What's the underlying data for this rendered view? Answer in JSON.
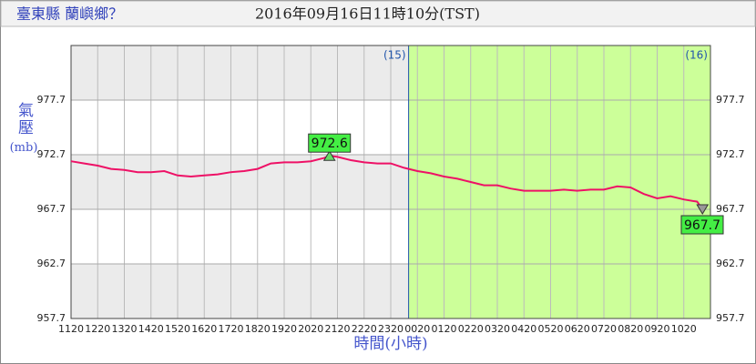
{
  "chart_data": {
    "type": "line",
    "station": "臺東縣 蘭嶼鄉？",
    "datetime": "2016年09月16日11時10分(TST)",
    "y_label": "氣壓",
    "y_unit": "(mb)",
    "x_label": "時間(小時)",
    "xlim": [
      0,
      24
    ],
    "ylim": [
      957.7,
      982.7
    ],
    "yticks": [
      957.7,
      962.7,
      967.7,
      972.7,
      977.7
    ],
    "xticks": [
      {
        "value": 0,
        "label": "1120"
      },
      {
        "value": 1,
        "label": "1220"
      },
      {
        "value": 2,
        "label": "1320"
      },
      {
        "value": 3,
        "label": "1420"
      },
      {
        "value": 4,
        "label": "1520"
      },
      {
        "value": 5,
        "label": "1620"
      },
      {
        "value": 6,
        "label": "1720"
      },
      {
        "value": 7,
        "label": "1820"
      },
      {
        "value": 8,
        "label": "1920"
      },
      {
        "value": 9,
        "label": "2020"
      },
      {
        "value": 10,
        "label": "2120"
      },
      {
        "value": 11,
        "label": "2220"
      },
      {
        "value": 12,
        "label": "2320"
      },
      {
        "value": 13,
        "label": "0020"
      },
      {
        "value": 14,
        "label": "0120"
      },
      {
        "value": 15,
        "label": "0220"
      },
      {
        "value": 16,
        "label": "0320"
      },
      {
        "value": 17,
        "label": "0420"
      },
      {
        "value": 18,
        "label": "0520"
      },
      {
        "value": 19,
        "label": "0620"
      },
      {
        "value": 20,
        "label": "0720"
      },
      {
        "value": 21,
        "label": "0820"
      },
      {
        "value": 22,
        "label": "0920"
      },
      {
        "value": 23,
        "label": "1020"
      }
    ],
    "days": [
      {
        "label": "(15)",
        "x": 12.67
      },
      {
        "label": "(16)",
        "x": 24
      }
    ],
    "highlight": {
      "from": 12.67,
      "color": "#ccff99"
    },
    "band_color": "#ebebeb",
    "series": [
      {
        "name": "氣壓",
        "color": "#ee1166",
        "x": [
          0,
          0.5,
          1,
          1.5,
          2,
          2.5,
          3,
          3.5,
          4,
          4.5,
          5,
          5.5,
          6,
          6.5,
          7,
          7.5,
          8,
          8.5,
          9,
          9.5,
          9.7,
          10,
          10.5,
          11,
          11.5,
          12,
          12.5,
          13,
          13.5,
          14,
          14.5,
          15,
          15.5,
          16,
          16.5,
          17,
          17.5,
          18,
          18.5,
          19,
          19.5,
          20,
          20.5,
          21,
          21.5,
          22,
          22.5,
          23,
          23.5,
          23.7
        ],
        "values": [
          972.1,
          971.9,
          971.7,
          971.4,
          971.3,
          971.1,
          971.1,
          971.2,
          970.8,
          970.7,
          970.8,
          970.9,
          971.1,
          971.2,
          971.4,
          971.9,
          972.0,
          972.0,
          972.1,
          972.4,
          972.6,
          972.5,
          972.2,
          972.0,
          971.9,
          971.9,
          971.5,
          971.2,
          971.0,
          970.7,
          970.5,
          970.2,
          969.9,
          969.9,
          969.6,
          969.4,
          969.4,
          969.4,
          969.5,
          969.4,
          969.5,
          969.5,
          969.8,
          969.7,
          969.1,
          968.7,
          968.9,
          968.6,
          968.4,
          967.7
        ]
      }
    ],
    "annotations": [
      {
        "kind": "max",
        "label": "972.6",
        "x": 9.7,
        "y": 972.6
      },
      {
        "kind": "min",
        "label": "967.7",
        "x": 23.7,
        "y": 967.7
      }
    ]
  }
}
